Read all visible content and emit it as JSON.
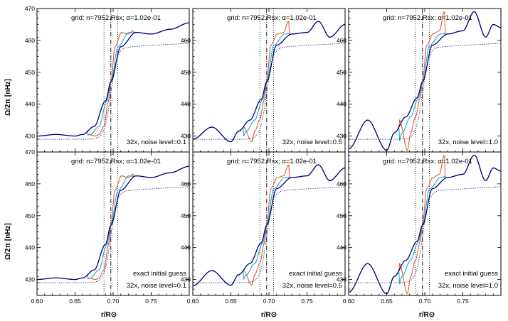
{
  "chart_data": {
    "type": "line",
    "layout": "2x3 panel grid",
    "xlabel": "r/R⊙",
    "ylabel": "Ω/2π [nHz]",
    "xlim": [
      0.6,
      0.8
    ],
    "ylim": [
      425,
      470
    ],
    "x_ticks": [
      "0.60",
      "0.65",
      "0.70",
      "0.75"
    ],
    "y_ticks": [
      "430",
      "440",
      "450",
      "460",
      "470"
    ],
    "reference_lines": {
      "dotted_left": 0.688,
      "dashdot_center": 0.697,
      "dotted_right": 0.706
    },
    "series_styles": [
      {
        "color": "#000080",
        "style": "solid"
      },
      {
        "color": "#00a8c8",
        "style": "solid"
      },
      {
        "color": "#e84820",
        "style": "solid"
      },
      {
        "color": "#000080",
        "style": "dotted"
      }
    ],
    "panels": [
      {
        "grid_label": "grid: n=7952.Rsx; α=1.02e-01",
        "guess_label": "",
        "noise_label": "32x, noise level=0.1",
        "x": [
          0.6,
          0.625,
          0.65,
          0.66,
          0.675,
          0.69,
          0.697,
          0.71,
          0.73,
          0.75,
          0.775,
          0.8
        ],
        "series": [
          {
            "values": [
              430.0,
              430.5,
              430.0,
              430.5,
              433.0,
              441.0,
              447.0,
              458.0,
              462.5,
              462.0,
              463.5,
              465.5
            ]
          }
        ]
      },
      {
        "grid_label": "grid: n=7952.Rsx; α=1.02e-01",
        "guess_label": "",
        "noise_label": "32x, noise level=0.5",
        "x": [
          0.6,
          0.625,
          0.65,
          0.66,
          0.675,
          0.69,
          0.697,
          0.71,
          0.73,
          0.75,
          0.765,
          0.78,
          0.8
        ],
        "series": [
          {
            "values": [
              429.0,
              432.8,
              428.2,
              431.5,
              435.0,
              441.5,
              447.0,
              458.5,
              462.0,
              462.5,
              466.0,
              461.0,
              465.0
            ]
          }
        ]
      },
      {
        "grid_label": "grid: n=7952.Rsx; α=1.02e-01",
        "guess_label": "",
        "noise_label": "32x, noise level=1.0",
        "x": [
          0.6,
          0.625,
          0.65,
          0.66,
          0.675,
          0.69,
          0.697,
          0.71,
          0.73,
          0.75,
          0.765,
          0.78,
          0.79,
          0.8
        ],
        "series": [
          {
            "values": [
              426.0,
              435.0,
              425.5,
              431.0,
              436.0,
              442.0,
              447.0,
              458.5,
              462.0,
              463.0,
              469.0,
              461.0,
              465.0,
              464.0
            ]
          }
        ]
      },
      {
        "grid_label": "grid: n=7952.Rsx; α=1.02e-01",
        "guess_label": "exact initial guess",
        "noise_label": "32x, noise level=0.1",
        "x": [
          0.6,
          0.625,
          0.65,
          0.66,
          0.675,
          0.69,
          0.697,
          0.71,
          0.73,
          0.75,
          0.775,
          0.8
        ],
        "series": [
          {
            "values": [
              430.0,
              430.5,
              430.0,
              430.5,
              433.0,
              441.0,
              447.0,
              458.0,
              462.5,
              462.0,
              463.5,
              465.5
            ]
          }
        ]
      },
      {
        "grid_label": "grid: n=7952.Rsx; α=1.02e-01",
        "guess_label": "exact initial guess",
        "noise_label": "32x, noise level=0.5",
        "x": [
          0.6,
          0.625,
          0.65,
          0.66,
          0.675,
          0.69,
          0.697,
          0.71,
          0.73,
          0.75,
          0.765,
          0.78,
          0.8
        ],
        "series": [
          {
            "values": [
              428.0,
              432.8,
              428.2,
              431.5,
              435.0,
              441.5,
              447.0,
              458.5,
              462.0,
              462.5,
              466.0,
              461.0,
              465.0
            ]
          }
        ]
      },
      {
        "grid_label": "grid: n=7952.Rsx; α=1.02e-01",
        "guess_label": "exact initial guess",
        "noise_label": "32x, noise level=1.0",
        "x": [
          0.6,
          0.625,
          0.65,
          0.66,
          0.675,
          0.69,
          0.697,
          0.71,
          0.73,
          0.75,
          0.765,
          0.78,
          0.79,
          0.8
        ],
        "series": [
          {
            "values": [
              426.0,
              435.0,
              425.5,
              431.0,
              436.0,
              442.0,
              447.0,
              458.5,
              462.0,
              463.0,
              469.0,
              461.0,
              465.0,
              464.0
            ]
          }
        ]
      }
    ]
  }
}
